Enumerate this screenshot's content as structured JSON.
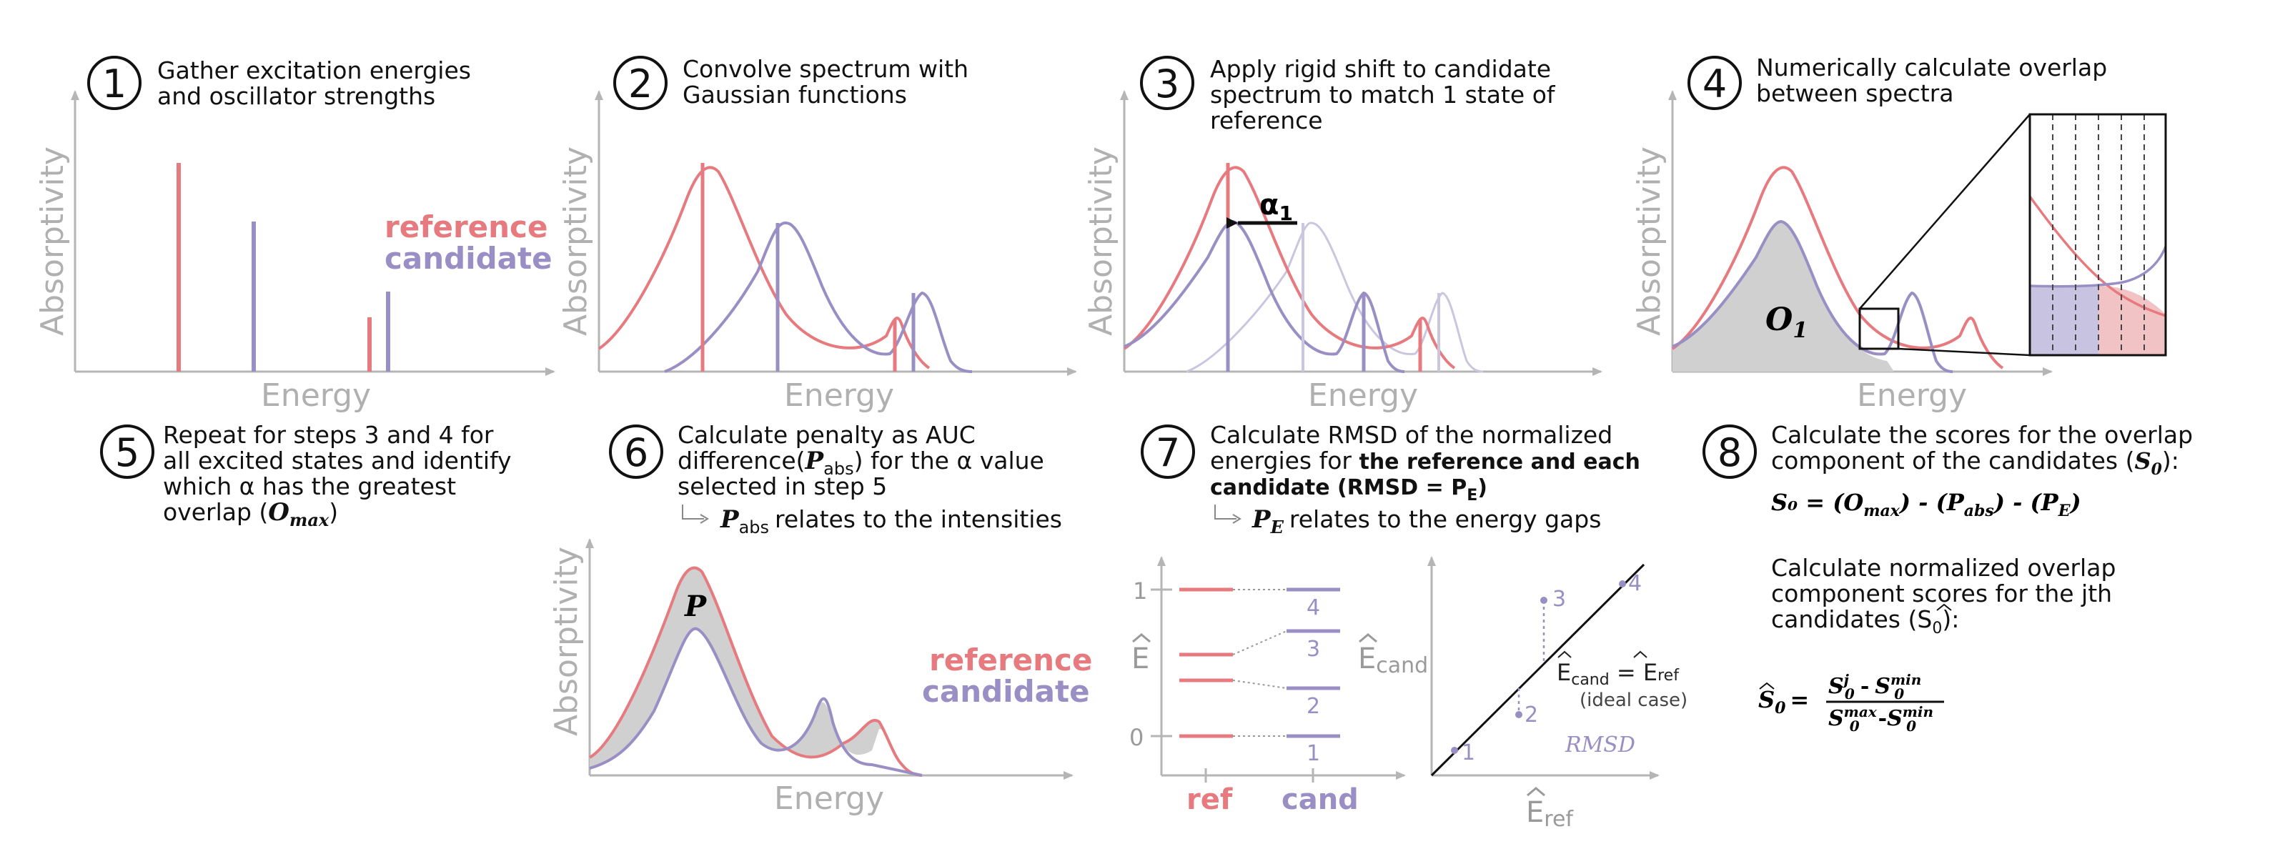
{
  "colors": {
    "reference": "#e77a7e",
    "candidate": "#9a8fc4",
    "axis": "#b5b5b5",
    "fill_gray": "#d0d0d0"
  },
  "steps": [
    {
      "number": "1",
      "lines": [
        "Gather excitation energies",
        "and oscillator strengths"
      ]
    },
    {
      "number": "2",
      "lines": [
        "Convolve spectrum with",
        "Gaussian functions"
      ]
    },
    {
      "number": "3",
      "lines": [
        "Apply rigid shift to candidate",
        "spectrum to match 1 state of",
        "reference"
      ]
    },
    {
      "number": "4",
      "lines": [
        "Numerically calculate overlap",
        "between spectra"
      ]
    },
    {
      "number": "5",
      "lines": [
        "Repeat for steps 3 and 4 for",
        "all excited states and identify",
        "which α has the greatest",
        "overlap ("
      ],
      "omax": "O",
      "omax_sub": "max",
      "close": ")"
    },
    {
      "number": "6",
      "lines": [
        "Calculate penalty as AUC",
        "difference(",
        "selected in step 5"
      ],
      "pabs": "P",
      "pabs_sub": "abs",
      "after": ") for the α value",
      "note": "relates to the intensities"
    },
    {
      "number": "7",
      "lines": [
        "Calculate RMSD of the normalized",
        "energies for ",
        "candidate (RMSD = P"
      ],
      "bold1": "the reference and each",
      "bold_sub": "E",
      "note_symbol": "P",
      "note_sub": "E",
      "note": "relates to the energy gaps"
    },
    {
      "number": "8",
      "lines": [
        "Calculate the scores for the overlap",
        "component of the candidates (",
        "Calculate normalized overlap",
        "component scores for the jth",
        "candidates ("
      ]
    }
  ],
  "axes": {
    "absorptivity": "Absorptivity",
    "energy": "Energy"
  },
  "legend": {
    "reference": "reference",
    "candidate": "candidate"
  },
  "labels": {
    "alpha": "α",
    "alpha_sub": "1",
    "overlap": "O",
    "overlap_sub": "1",
    "penalty": "P",
    "e_hat": "E",
    "e_cand": "E",
    "e_cand_sub": "cand",
    "e_ref": "E",
    "e_ref_sub": "ref",
    "equation_ref": "ref",
    "ideal_case": "(ideal case)",
    "rmsd": "RMSD",
    "ref_axis": "ref",
    "cand_axis": "cand",
    "tick_one": "1",
    "tick_zero": "0",
    "levels": [
      "1",
      "2",
      "3",
      "4"
    ],
    "points": [
      "1",
      "2",
      "3",
      "4"
    ]
  },
  "formulas": {
    "score": "S₀ = (O",
    "score_max": "max",
    "score_rest": ") - (P",
    "score_abs": "abs",
    "score_rest2": ") - (P",
    "score_e": "E",
    "score_end": ")",
    "s0_sym": "S",
    "s0_sub": "0",
    "frac_eq": "=",
    "num_j": "j",
    "num_min": "min",
    "den_max": "max",
    "den_min": "min",
    "minus": "-"
  }
}
